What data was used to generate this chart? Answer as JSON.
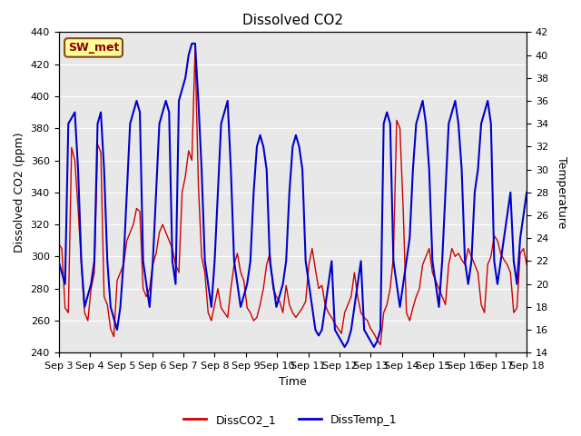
{
  "title": "Dissolved CO2",
  "xlabel": "Time",
  "ylabel_left": "Dissolved CO2 (ppm)",
  "ylabel_right": "Temperature",
  "ylim_left": [
    240,
    440
  ],
  "ylim_right": [
    14,
    42
  ],
  "yticks_left": [
    240,
    260,
    280,
    300,
    320,
    340,
    360,
    380,
    400,
    420,
    440
  ],
  "yticks_right": [
    14,
    16,
    18,
    20,
    22,
    24,
    26,
    28,
    30,
    32,
    34,
    36,
    38,
    40,
    42
  ],
  "xtick_labels": [
    "Sep 3",
    "Sep 4",
    "Sep 5",
    "Sep 6",
    "Sep 7",
    "Sep 8",
    "Sep 9",
    "Sep 10",
    "Sep 11",
    "Sep 12",
    "Sep 13",
    "Sep 14",
    "Sep 15",
    "Sep 16",
    "Sep 17",
    "Sep 18"
  ],
  "bg_color": "#e8e8e8",
  "fig_color": "#ffffff",
  "line_co2_color": "#cc0000",
  "line_temp_color": "#0000cc",
  "legend_label_co2": "DissCO2_1",
  "legend_label_temp": "DissTemp_1",
  "sw_met_label": "SW_met",
  "sw_met_bg": "#ffff99",
  "sw_met_border": "#8b4513",
  "co2_data": [
    308,
    305,
    268,
    265,
    368,
    360,
    330,
    295,
    265,
    260,
    280,
    290,
    370,
    365,
    275,
    270,
    255,
    250,
    285,
    290,
    295,
    310,
    315,
    320,
    330,
    328,
    280,
    275,
    280,
    295,
    302,
    315,
    320,
    315,
    310,
    305,
    295,
    290,
    340,
    350,
    366,
    360,
    430,
    345,
    300,
    290,
    265,
    260,
    270,
    280,
    268,
    265,
    262,
    280,
    295,
    302,
    290,
    285,
    268,
    265,
    260,
    262,
    270,
    280,
    295,
    302,
    280,
    275,
    272,
    265,
    282,
    270,
    265,
    262,
    265,
    268,
    272,
    295,
    305,
    292,
    280,
    282,
    270,
    265,
    262,
    258,
    255,
    252,
    265,
    270,
    275,
    290,
    275,
    265,
    262,
    260,
    255,
    252,
    248,
    245,
    265,
    270,
    280,
    300,
    385,
    380,
    330,
    265,
    260,
    268,
    275,
    280,
    295,
    300,
    305,
    290,
    285,
    280,
    275,
    270,
    295,
    305,
    300,
    302,
    298,
    295,
    305,
    300,
    295,
    290,
    270,
    265,
    295,
    300,
    313,
    310,
    302,
    298,
    295,
    290,
    265,
    268,
    302,
    305,
    295
  ],
  "temp_data": [
    22,
    21,
    20,
    34,
    34.5,
    35,
    30,
    22,
    18,
    19,
    20,
    22,
    34,
    35,
    30,
    22,
    18,
    17,
    16,
    18,
    22,
    28,
    34,
    35,
    36,
    35,
    22,
    20,
    18,
    22,
    28,
    34,
    35,
    36,
    35,
    22,
    20,
    36,
    37,
    38,
    40,
    41,
    41,
    36,
    30,
    22,
    20,
    18,
    22,
    28,
    34,
    35,
    36,
    30,
    22,
    20,
    18,
    19,
    20,
    22,
    28,
    32,
    33,
    32,
    30,
    22,
    20,
    18,
    19,
    20,
    22,
    28,
    32,
    33,
    32,
    30,
    22,
    20,
    18,
    16,
    15.5,
    16,
    18,
    20,
    22,
    16,
    15.5,
    15,
    14.5,
    15,
    16,
    18,
    20,
    22,
    16,
    15.5,
    15,
    14.5,
    15,
    16,
    34,
    35,
    34,
    22,
    20,
    18,
    20,
    22,
    24,
    30,
    34,
    35,
    36,
    34,
    30,
    22,
    20,
    18,
    22,
    28,
    34,
    35,
    36,
    34,
    30,
    22,
    20,
    22,
    28,
    30,
    34,
    35,
    36,
    34,
    22,
    20,
    22,
    24,
    26,
    28,
    22,
    20,
    24,
    26,
    28
  ],
  "title_fontsize": 11,
  "axis_fontsize": 9,
  "tick_fontsize": 8
}
